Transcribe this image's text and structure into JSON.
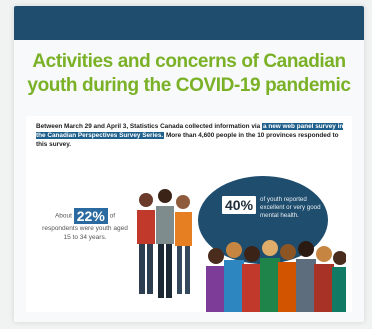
{
  "title": {
    "line1": "Activities and concerns of Canadian",
    "line2": "youth during the COVID-19 pandemic"
  },
  "intro": {
    "part1": "Between March 29 and April 3, Statistics Canada collected information via",
    "highlight": "a new web panel survey in the Canadian Perspectives Survey Series.",
    "part2": "More than 4,600 people in the 10 provinces responded to this survey."
  },
  "stat_left": {
    "prefix": "About",
    "value": "22%",
    "suffix": "of",
    "rest": "respondents were youth aged 15 to 34 years."
  },
  "stat_right": {
    "value": "40%",
    "text": "of youth reported excellent or very good mental health."
  },
  "colors": {
    "bar": "#1f4d6e",
    "title": "#7ab127",
    "highlight": "#1f5f8b"
  }
}
